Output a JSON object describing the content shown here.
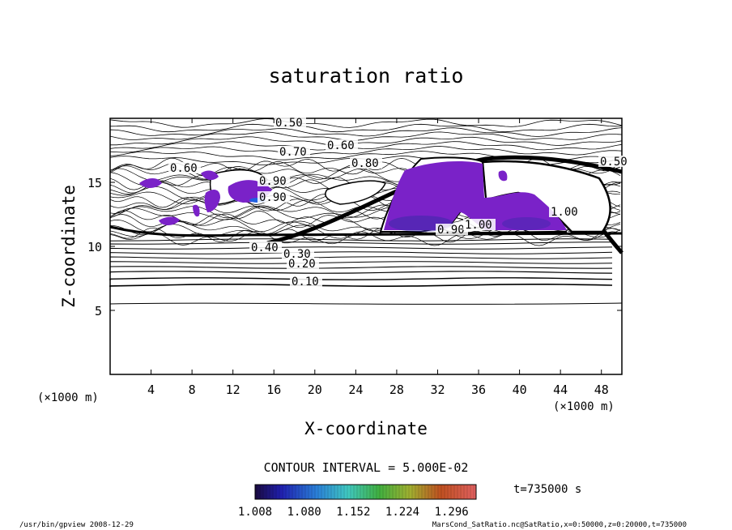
{
  "chart_data": {
    "type": "contour",
    "title": "saturation ratio",
    "xlabel": "X-coordinate",
    "ylabel": "Z-coordinate",
    "x_unit_label": "(×1000 m)",
    "y_unit_label": "(×1000 m)",
    "x_range": [
      0,
      50000
    ],
    "y_range": [
      0,
      20000
    ],
    "x_ticks": [
      "4",
      "8",
      "12",
      "16",
      "20",
      "24",
      "28",
      "32",
      "36",
      "40",
      "44",
      "48"
    ],
    "y_ticks": [
      "5",
      "10",
      "15"
    ],
    "contour_interval_text": "CONTOUR INTERVAL = 5.000E-02",
    "contour_labels": [
      "0.50",
      "0.70",
      "0.60",
      "0.80",
      "0.50",
      "0.60",
      "0.90",
      "0.40",
      "0.30",
      "0.20",
      "0.10",
      "1.00",
      "0.90",
      "0.90",
      "1.00"
    ],
    "colorbar": {
      "ticks": [
        "1.008",
        "1.080",
        "1.152",
        "1.224",
        "1.296"
      ],
      "range": [
        1.008,
        1.332
      ]
    },
    "time_label": "t=735000 s",
    "grid": false
  },
  "footer": {
    "left": "/usr/bin/gpview   2008-12-29",
    "right": "MarsCond_SatRatio.nc@SatRatio,x=0:50000,z=0:20000,t=735000"
  },
  "colors": {
    "supersat_fill": "#7a22c8",
    "contour_line": "#000000"
  }
}
